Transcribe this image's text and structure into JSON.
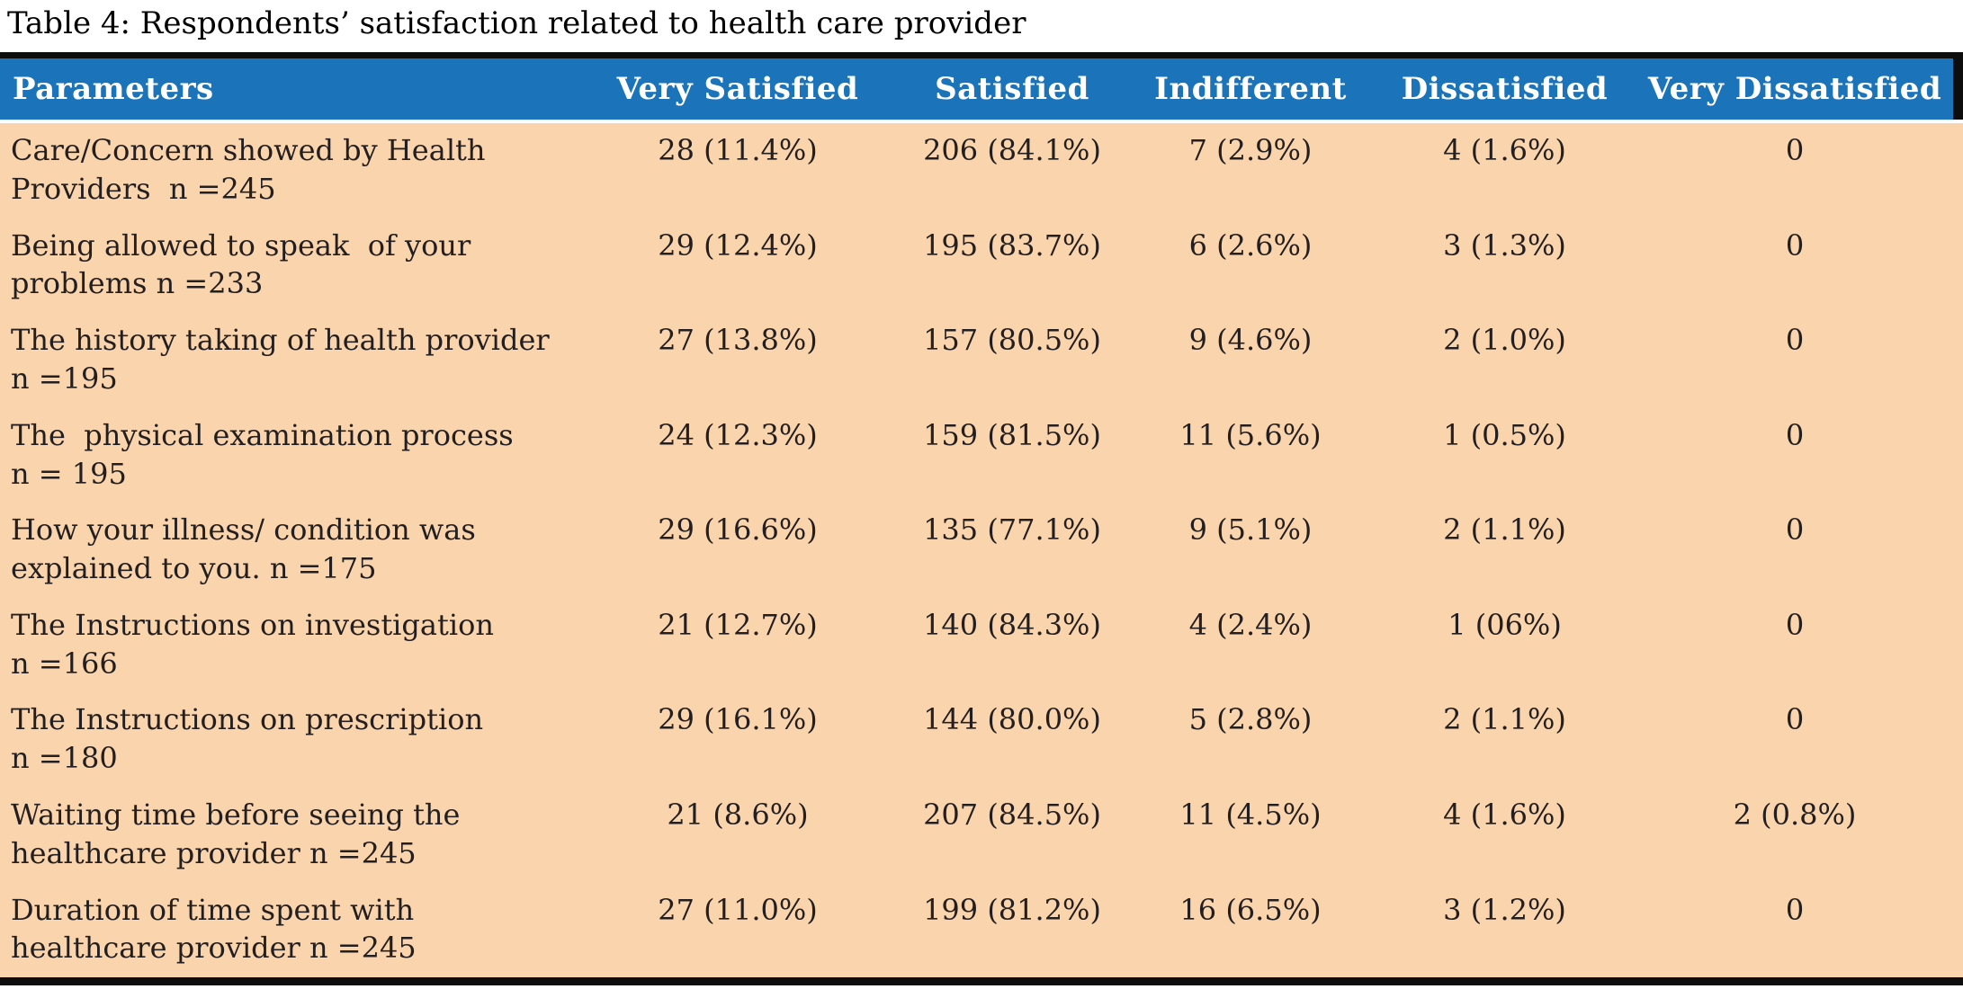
{
  "title": "Table 4: Respondents’ satisfaction related to health care provider",
  "colors": {
    "header_bg": "#1B73B9",
    "body_bg": "#FAD4AC",
    "rule": "#0D0D0D",
    "header_text": "#FFFFFF",
    "body_text": "#231F20",
    "caption_text": "#000000"
  },
  "table": {
    "columns": [
      "Parameters",
      "Very Satisfied",
      "Satisfied",
      "Indifferent",
      "Dissatisfied",
      "Very Dissatisfied"
    ],
    "rows": [
      {
        "parameter": "Care/Concern showed by Health\nProviders  n =245",
        "very_satisfied": "28 (11.4%)",
        "satisfied": "206 (84.1%)",
        "indifferent": "7 (2.9%)",
        "dissatisfied": "4 (1.6%)",
        "very_dissatisfied": "0"
      },
      {
        "parameter": "Being allowed to speak  of your\nproblems n =233",
        "very_satisfied": "29 (12.4%)",
        "satisfied": "195 (83.7%)",
        "indifferent": "6 (2.6%)",
        "dissatisfied": "3 (1.3%)",
        "very_dissatisfied": "0"
      },
      {
        "parameter": "The history taking of health provider\nn =195",
        "very_satisfied": "27 (13.8%)",
        "satisfied": "157 (80.5%)",
        "indifferent": "9 (4.6%)",
        "dissatisfied": "2 (1.0%)",
        "very_dissatisfied": "0"
      },
      {
        "parameter": "The  physical examination process\nn = 195",
        "very_satisfied": "24 (12.3%)",
        "satisfied": "159 (81.5%)",
        "indifferent": "11 (5.6%)",
        "dissatisfied": "1 (0.5%)",
        "very_dissatisfied": "0"
      },
      {
        "parameter": "How your illness/ condition was\nexplained to you. n =175",
        "very_satisfied": "29 (16.6%)",
        "satisfied": "135 (77.1%)",
        "indifferent": "9 (5.1%)",
        "dissatisfied": "2 (1.1%)",
        "very_dissatisfied": "0"
      },
      {
        "parameter": "The Instructions on investigation\nn =166",
        "very_satisfied": "21 (12.7%)",
        "satisfied": "140 (84.3%)",
        "indifferent": "4 (2.4%)",
        "dissatisfied": "1 (06%)",
        "very_dissatisfied": "0"
      },
      {
        "parameter": "The Instructions on prescription\nn =180",
        "very_satisfied": "29 (16.1%)",
        "satisfied": "144 (80.0%)",
        "indifferent": "5 (2.8%)",
        "dissatisfied": "2 (1.1%)",
        "very_dissatisfied": "0"
      },
      {
        "parameter": "Waiting time before seeing the\nhealthcare provider n =245",
        "very_satisfied": "21 (8.6%)",
        "satisfied": "207 (84.5%)",
        "indifferent": "11 (4.5%)",
        "dissatisfied": "4 (1.6%)",
        "very_dissatisfied": "2 (0.8%)"
      },
      {
        "parameter": "Duration of time spent with\nhealthcare provider n =245",
        "very_satisfied": "27 (11.0%)",
        "satisfied": "199 (81.2%)",
        "indifferent": "16 (6.5%)",
        "dissatisfied": "3 (1.2%)",
        "very_dissatisfied": "0"
      }
    ]
  }
}
